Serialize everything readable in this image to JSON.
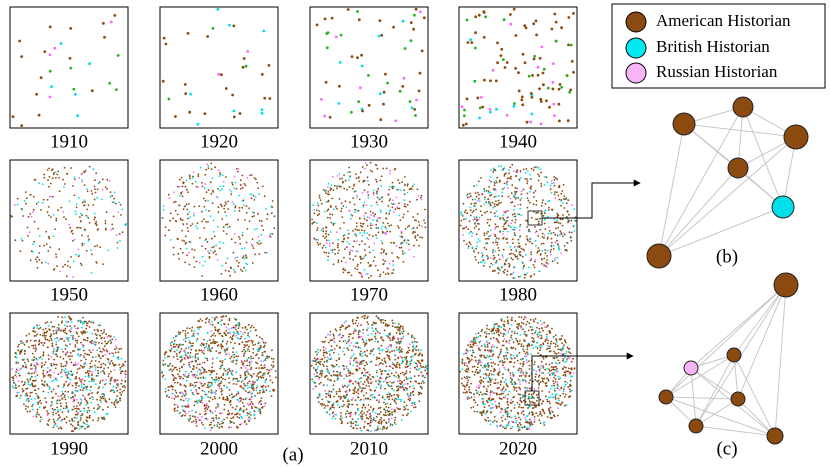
{
  "panels": [
    {
      "label": "1910"
    },
    {
      "label": "1920"
    },
    {
      "label": "1930"
    },
    {
      "label": "1940"
    },
    {
      "label": "1950"
    },
    {
      "label": "1960"
    },
    {
      "label": "1970"
    },
    {
      "label": "1980"
    },
    {
      "label": "1990"
    },
    {
      "label": "2000"
    },
    {
      "label": "2010"
    },
    {
      "label": "2020"
    }
  ],
  "panel_caption": "(a)",
  "legend": {
    "items": [
      {
        "label": "American Historian"
      },
      {
        "label": "British Historian"
      },
      {
        "label": "Russian Historian"
      }
    ]
  },
  "networks": [
    {
      "caption": "(b)"
    },
    {
      "caption": "(c)"
    }
  ]
}
